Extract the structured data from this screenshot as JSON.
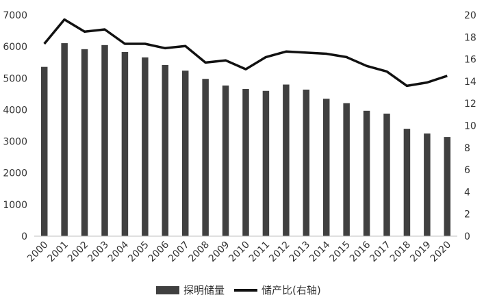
{
  "chart_data": {
    "type": "bar+line",
    "categories": [
      "2000",
      "2001",
      "2002",
      "2003",
      "2004",
      "2005",
      "2006",
      "2007",
      "2008",
      "2009",
      "2010",
      "2011",
      "2012",
      "2013",
      "2014",
      "2015",
      "2016",
      "2017",
      "2018",
      "2019",
      "2020"
    ],
    "series": [
      {
        "name": "探明储量",
        "type": "bar",
        "axis": "left",
        "color": "#404040",
        "values": [
          5360,
          6110,
          5920,
          6050,
          5830,
          5660,
          5420,
          5240,
          4980,
          4770,
          4660,
          4600,
          4800,
          4640,
          4350,
          4210,
          3970,
          3880,
          3400,
          3250,
          3140
        ]
      },
      {
        "name": "储产比(右轴)",
        "type": "line",
        "axis": "right",
        "color": "#111111",
        "values": [
          17.4,
          19.6,
          18.5,
          18.7,
          17.4,
          17.4,
          17.0,
          17.2,
          15.7,
          15.9,
          15.1,
          16.2,
          16.7,
          16.6,
          16.5,
          16.2,
          15.4,
          14.9,
          13.6,
          13.9,
          14.5
        ]
      }
    ],
    "y_left": {
      "min": 0,
      "max": 7000,
      "ticks": [
        0,
        1000,
        2000,
        3000,
        4000,
        5000,
        6000,
        7000
      ]
    },
    "y_right": {
      "min": 0,
      "max": 20,
      "ticks": [
        0,
        2,
        4,
        6,
        8,
        10,
        12,
        14,
        16,
        18,
        20
      ]
    },
    "grid": false,
    "legend_position": "bottom"
  },
  "legend": {
    "bar_label": "探明储量",
    "line_label": "储产比(右轴)"
  }
}
